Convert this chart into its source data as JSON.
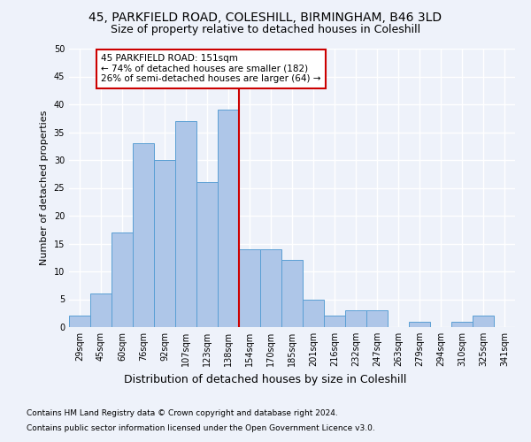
{
  "title1": "45, PARKFIELD ROAD, COLESHILL, BIRMINGHAM, B46 3LD",
  "title2": "Size of property relative to detached houses in Coleshill",
  "xlabel": "Distribution of detached houses by size in Coleshill",
  "ylabel": "Number of detached properties",
  "footnote1": "Contains HM Land Registry data © Crown copyright and database right 2024.",
  "footnote2": "Contains public sector information licensed under the Open Government Licence v3.0.",
  "bin_labels": [
    "29sqm",
    "45sqm",
    "60sqm",
    "76sqm",
    "92sqm",
    "107sqm",
    "123sqm",
    "138sqm",
    "154sqm",
    "170sqm",
    "185sqm",
    "201sqm",
    "216sqm",
    "232sqm",
    "247sqm",
    "263sqm",
    "279sqm",
    "294sqm",
    "310sqm",
    "325sqm",
    "341sqm"
  ],
  "bar_heights": [
    2,
    6,
    17,
    33,
    30,
    37,
    26,
    39,
    14,
    14,
    12,
    5,
    2,
    3,
    3,
    0,
    1,
    0,
    1,
    2,
    0
  ],
  "bar_color": "#aec6e8",
  "bar_edgecolor": "#5a9fd4",
  "vline_color": "#cc0000",
  "annotation_text": "45 PARKFIELD ROAD: 151sqm\n← 74% of detached houses are smaller (182)\n26% of semi-detached houses are larger (64) →",
  "annotation_box_color": "#cc0000",
  "ylim": [
    0,
    50
  ],
  "yticks": [
    0,
    5,
    10,
    15,
    20,
    25,
    30,
    35,
    40,
    45,
    50
  ],
  "bg_color": "#eef2fa",
  "grid_color": "#ffffff",
  "title1_fontsize": 10,
  "title2_fontsize": 9,
  "xlabel_fontsize": 9,
  "ylabel_fontsize": 8,
  "annotation_fontsize": 7.5,
  "tick_fontsize": 7,
  "footnote_fontsize": 6.5,
  "vline_x_index": 7.5
}
